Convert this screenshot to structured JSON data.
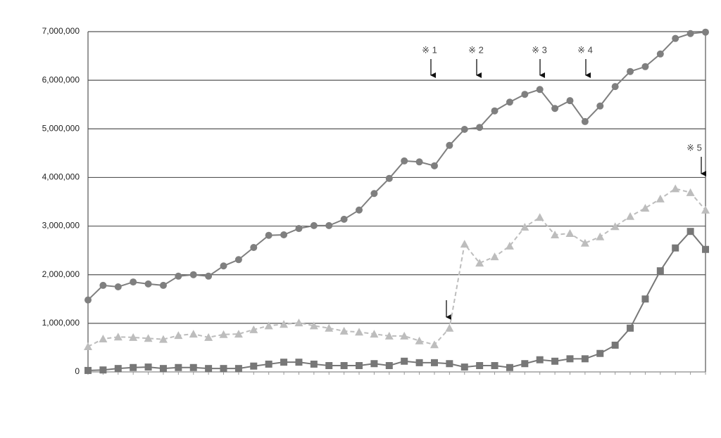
{
  "chart_data": {
    "type": "line",
    "categories": [
      null,
      null,
      null,
      null,
      null,
      null,
      null,
      null,
      null,
      null,
      null,
      null,
      null,
      null,
      null,
      null,
      null,
      null,
      null,
      null,
      null,
      null,
      null,
      null,
      null,
      null,
      null,
      null,
      null,
      null,
      null,
      null,
      null,
      null,
      null,
      null,
      null,
      null,
      null,
      null,
      null,
      null
    ],
    "ylim": [
      0,
      7000000
    ],
    "yticks": [
      0,
      {
        "value": 1000000,
        "label": "1,000,000"
      },
      {
        "value": 2000000,
        "label": "2,000,000"
      },
      {
        "value": 3000000,
        "label": "3,000,000"
      },
      {
        "value": 4000000,
        "label": "4,000,000"
      },
      {
        "value": 5000000,
        "label": "5,000,000"
      },
      {
        "value": 6000000,
        "label": "6,000,000"
      },
      {
        "value": 7000000,
        "label": "7,000,000"
      }
    ],
    "grid": true,
    "series": [
      {
        "color": "#7f7f7f",
        "marker": "circle",
        "linestyle": "solid",
        "values": [
          1480000,
          1780000,
          1750000,
          1850000,
          1810000,
          1780000,
          1970000,
          2000000,
          1970000,
          2180000,
          2310000,
          2560000,
          2810000,
          2820000,
          2950000,
          3010000,
          3010000,
          3140000,
          3330000,
          3670000,
          3980000,
          4340000,
          4320000,
          4240000,
          4660000,
          4990000,
          5030000,
          5370000,
          5550000,
          5710000,
          5810000,
          5420000,
          5580000,
          5150000,
          5470000,
          5870000,
          6180000,
          6280000,
          6540000,
          6860000,
          6960000,
          6990000
        ]
      },
      {
        "color": "#bdbdbd",
        "marker": "triangle",
        "linestyle": "dashed",
        "values": [
          520000,
          680000,
          720000,
          710000,
          690000,
          670000,
          750000,
          780000,
          710000,
          770000,
          780000,
          870000,
          950000,
          980000,
          1010000,
          950000,
          900000,
          840000,
          820000,
          780000,
          740000,
          740000,
          640000,
          560000,
          900000,
          2630000,
          2240000,
          2370000,
          2590000,
          2980000,
          3180000,
          2820000,
          2850000,
          2650000,
          2780000,
          2990000,
          3200000,
          3370000,
          3560000,
          3770000,
          3690000,
          3330000
        ]
      },
      {
        "color": "#777777",
        "marker": "square",
        "linestyle": "solid",
        "values": [
          30000,
          40000,
          70000,
          90000,
          100000,
          70000,
          90000,
          90000,
          70000,
          70000,
          70000,
          120000,
          160000,
          200000,
          200000,
          160000,
          130000,
          130000,
          130000,
          170000,
          130000,
          220000,
          190000,
          190000,
          170000,
          100000,
          130000,
          130000,
          90000,
          170000,
          250000,
          220000,
          270000,
          270000,
          380000,
          550000,
          900000,
          1500000,
          2080000,
          2550000,
          2890000,
          2520000
        ]
      }
    ],
    "annotations": [
      "※ 1",
      "※ 2",
      "※ 3",
      "※ 4",
      "※ 5"
    ]
  }
}
